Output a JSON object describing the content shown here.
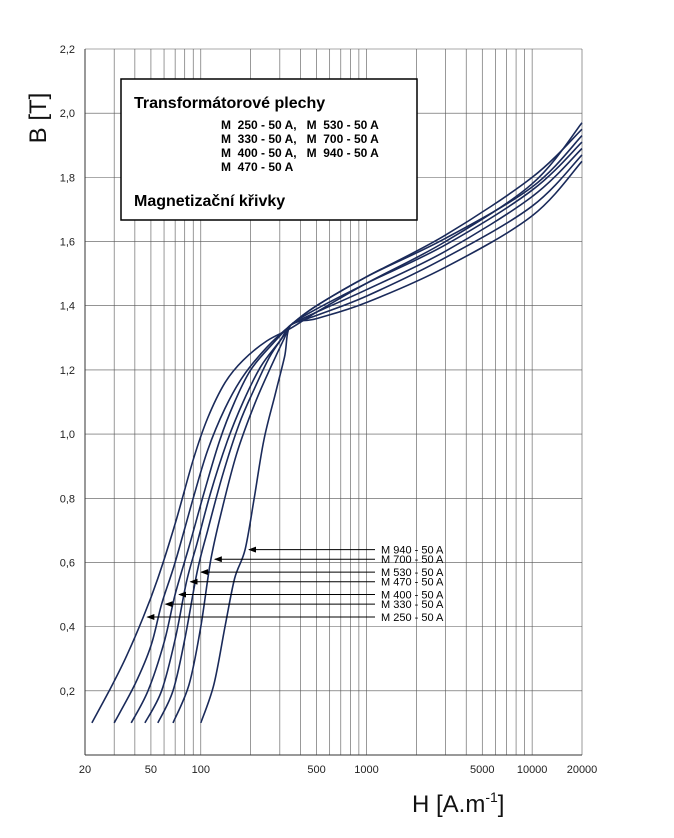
{
  "chart_data": {
    "type": "line",
    "xscale": "log",
    "xlim": [
      20,
      20000
    ],
    "ylim": [
      0,
      2.2
    ],
    "grid": true,
    "xlabel": "H [A.m",
    "xlabel_sup": "-1",
    "xlabel_close": "]",
    "ylabel": "B [T]",
    "x_tick_values": [
      20,
      50,
      100,
      500,
      1000,
      5000,
      10000,
      20000
    ],
    "x_tick_labels": [
      "20",
      "50",
      "100",
      "500",
      "1000",
      "5000",
      "10000",
      "20000"
    ],
    "y_tick_values": [
      0.2,
      0.4,
      0.6,
      0.8,
      1.0,
      1.2,
      1.4,
      1.6,
      1.8,
      2.0,
      2.2
    ],
    "y_tick_labels": [
      "0,2",
      "0,4",
      "0,6",
      "0,8",
      "1,0",
      "1,2",
      "1,4",
      "1,6",
      "1,8",
      "2,0",
      "2,2"
    ],
    "legend_box": {
      "title": "Transformátorové plechy",
      "lines": [
        "M  250 - 50 A,   M  530 - 50 A",
        "M  330 - 50 A,   M  700 - 50 A",
        "M  400 - 50 A,   M  940 - 50 A",
        "M  470 - 50 A"
      ],
      "subtitle": "Magnetizační křivky",
      "placement": "top-left"
    },
    "line_color": "#1a2a5a",
    "series": [
      {
        "name": "M 250 - 50 A",
        "label_y": 0.43,
        "points": [
          [
            22,
            0.1
          ],
          [
            28,
            0.2
          ],
          [
            35,
            0.3
          ],
          [
            45,
            0.43
          ],
          [
            55,
            0.55
          ],
          [
            70,
            0.72
          ],
          [
            90,
            0.92
          ],
          [
            110,
            1.05
          ],
          [
            140,
            1.16
          ],
          [
            180,
            1.23
          ],
          [
            250,
            1.29
          ],
          [
            350,
            1.33
          ],
          [
            500,
            1.38
          ],
          [
            1000,
            1.47
          ],
          [
            3000,
            1.6
          ],
          [
            10000,
            1.78
          ],
          [
            20000,
            1.97
          ]
        ]
      },
      {
        "name": "M 330 - 50 A",
        "label_y": 0.47,
        "points": [
          [
            30,
            0.1
          ],
          [
            40,
            0.22
          ],
          [
            50,
            0.34
          ],
          [
            58,
            0.47
          ],
          [
            70,
            0.6
          ],
          [
            90,
            0.8
          ],
          [
            110,
            0.95
          ],
          [
            140,
            1.08
          ],
          [
            180,
            1.18
          ],
          [
            250,
            1.27
          ],
          [
            350,
            1.34
          ],
          [
            500,
            1.4
          ],
          [
            1000,
            1.49
          ],
          [
            3000,
            1.62
          ],
          [
            10000,
            1.8
          ],
          [
            20000,
            1.95
          ]
        ]
      },
      {
        "name": "M 400 - 50 A",
        "label_y": 0.5,
        "points": [
          [
            38,
            0.1
          ],
          [
            48,
            0.2
          ],
          [
            60,
            0.35
          ],
          [
            70,
            0.5
          ],
          [
            85,
            0.65
          ],
          [
            105,
            0.82
          ],
          [
            130,
            0.98
          ],
          [
            160,
            1.1
          ],
          [
            200,
            1.2
          ],
          [
            270,
            1.28
          ],
          [
            350,
            1.34
          ],
          [
            500,
            1.4
          ],
          [
            1000,
            1.49
          ],
          [
            3000,
            1.61
          ],
          [
            10000,
            1.77
          ],
          [
            20000,
            1.93
          ]
        ]
      },
      {
        "name": "M 470 - 50 A",
        "label_y": 0.54,
        "points": [
          [
            46,
            0.1
          ],
          [
            58,
            0.2
          ],
          [
            70,
            0.36
          ],
          [
            82,
            0.54
          ],
          [
            95,
            0.66
          ],
          [
            115,
            0.82
          ],
          [
            145,
            0.98
          ],
          [
            180,
            1.1
          ],
          [
            230,
            1.21
          ],
          [
            300,
            1.29
          ],
          [
            350,
            1.34
          ],
          [
            500,
            1.39
          ],
          [
            1000,
            1.47
          ],
          [
            3000,
            1.59
          ],
          [
            10000,
            1.76
          ],
          [
            20000,
            1.91
          ]
        ]
      },
      {
        "name": "M 530 - 50 A",
        "label_y": 0.57,
        "points": [
          [
            55,
            0.1
          ],
          [
            68,
            0.2
          ],
          [
            80,
            0.36
          ],
          [
            95,
            0.57
          ],
          [
            110,
            0.7
          ],
          [
            135,
            0.87
          ],
          [
            170,
            1.03
          ],
          [
            210,
            1.14
          ],
          [
            260,
            1.24
          ],
          [
            320,
            1.31
          ],
          [
            350,
            1.34
          ],
          [
            500,
            1.38
          ],
          [
            1000,
            1.45
          ],
          [
            3000,
            1.57
          ],
          [
            10000,
            1.74
          ],
          [
            20000,
            1.89
          ]
        ]
      },
      {
        "name": "M 700 - 50 A",
        "label_y": 0.61,
        "points": [
          [
            68,
            0.1
          ],
          [
            85,
            0.22
          ],
          [
            100,
            0.4
          ],
          [
            115,
            0.61
          ],
          [
            135,
            0.77
          ],
          [
            165,
            0.94
          ],
          [
            210,
            1.09
          ],
          [
            260,
            1.2
          ],
          [
            320,
            1.3
          ],
          [
            350,
            1.34
          ],
          [
            500,
            1.37
          ],
          [
            1000,
            1.43
          ],
          [
            3000,
            1.55
          ],
          [
            10000,
            1.71
          ],
          [
            20000,
            1.87
          ]
        ]
      },
      {
        "name": "M 940 - 50 A",
        "label_y": 0.64,
        "points": [
          [
            100,
            0.1
          ],
          [
            120,
            0.22
          ],
          [
            140,
            0.4
          ],
          [
            160,
            0.55
          ],
          [
            185,
            0.64
          ],
          [
            210,
            0.8
          ],
          [
            240,
            0.98
          ],
          [
            280,
            1.12
          ],
          [
            320,
            1.24
          ],
          [
            350,
            1.34
          ],
          [
            500,
            1.36
          ],
          [
            1000,
            1.41
          ],
          [
            3000,
            1.52
          ],
          [
            10000,
            1.68
          ],
          [
            20000,
            1.85
          ]
        ]
      }
    ]
  }
}
